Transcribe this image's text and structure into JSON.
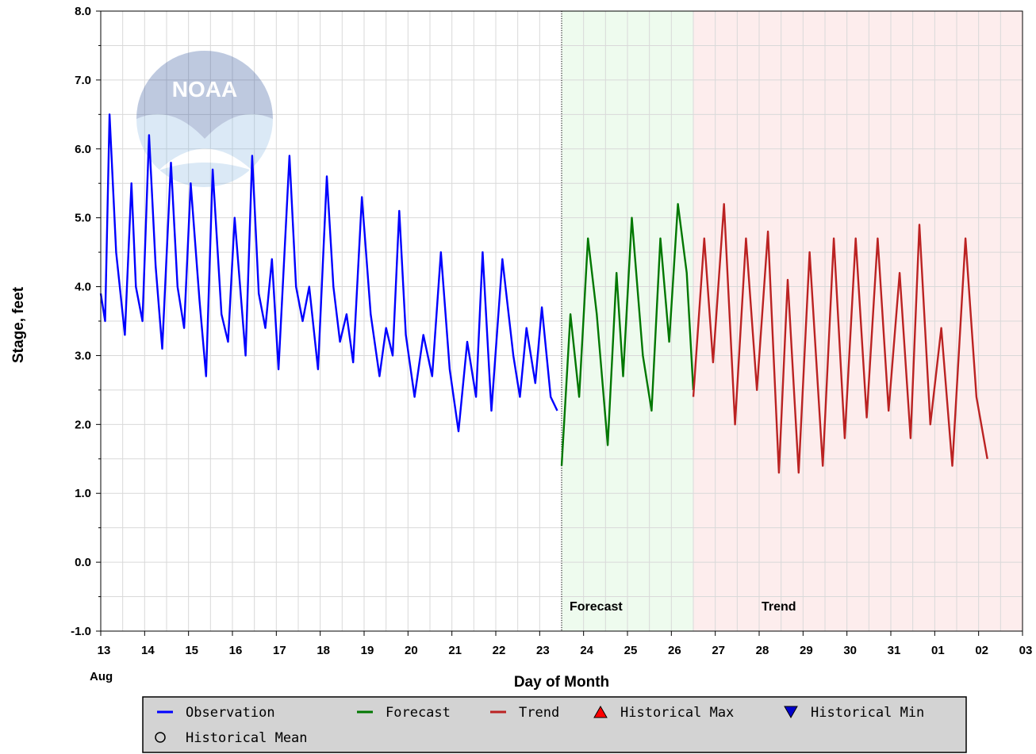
{
  "chart_data": {
    "type": "line",
    "title": "",
    "xlabel": "Day of Month",
    "ylabel": "Stage, feet",
    "ylim": [
      -1.0,
      8.0
    ],
    "xlim_days": [
      13,
      34
    ],
    "y_ticks": [
      "-1.0",
      "0.0",
      "1.0",
      "2.0",
      "3.0",
      "4.0",
      "5.0",
      "6.0",
      "7.0",
      "8.0"
    ],
    "x_ticks": [
      "13",
      "14",
      "15",
      "16",
      "17",
      "18",
      "19",
      "20",
      "21",
      "22",
      "23",
      "24",
      "25",
      "26",
      "27",
      "28",
      "29",
      "30",
      "31",
      "01",
      "02",
      "03"
    ],
    "x_month_label": "Aug",
    "grid": true,
    "regions": [
      {
        "name": "Forecast",
        "label": "Forecast",
        "start_day": 23.5,
        "end_day": 26.5,
        "color": "#eefbee"
      },
      {
        "name": "Trend",
        "label": "Trend",
        "start_day": 26.5,
        "end_day": 34,
        "color": "#fdeded"
      }
    ],
    "series": [
      {
        "name": "Observation",
        "color": "#0000ff",
        "x_day": [
          13.0,
          13.1,
          13.2,
          13.35,
          13.55,
          13.7,
          13.8,
          13.95,
          14.1,
          14.25,
          14.4,
          14.6,
          14.75,
          14.9,
          15.05,
          15.25,
          15.4,
          15.55,
          15.75,
          15.9,
          16.05,
          16.3,
          16.45,
          16.6,
          16.75,
          16.9,
          17.05,
          17.3,
          17.45,
          17.6,
          17.75,
          17.95,
          18.15,
          18.3,
          18.45,
          18.6,
          18.75,
          18.95,
          19.15,
          19.35,
          19.5,
          19.65,
          19.8,
          19.95,
          20.15,
          20.35,
          20.55,
          20.75,
          20.95,
          21.15,
          21.35,
          21.55,
          21.7,
          21.9,
          22.15,
          22.4,
          22.55,
          22.7,
          22.9,
          23.05,
          23.25,
          23.4
        ],
        "y": [
          3.9,
          3.5,
          6.5,
          4.5,
          3.3,
          5.5,
          4.0,
          3.5,
          6.2,
          4.3,
          3.1,
          5.8,
          4.0,
          3.4,
          5.5,
          3.8,
          2.7,
          5.7,
          3.6,
          3.2,
          5.0,
          3.0,
          5.9,
          3.9,
          3.4,
          4.4,
          2.8,
          5.9,
          4.0,
          3.5,
          4.0,
          2.8,
          5.6,
          4.0,
          3.2,
          3.6,
          2.9,
          5.3,
          3.6,
          2.7,
          3.4,
          3.0,
          5.1,
          3.3,
          2.4,
          3.3,
          2.7,
          4.5,
          2.8,
          1.9,
          3.2,
          2.4,
          4.5,
          2.2,
          4.4,
          3.0,
          2.4,
          3.4,
          2.6,
          3.7,
          2.4,
          2.2
        ]
      },
      {
        "name": "Forecast",
        "color": "#007700",
        "x_day": [
          23.5,
          23.7,
          23.9,
          24.1,
          24.3,
          24.55,
          24.75,
          24.9,
          25.1,
          25.35,
          25.55,
          25.75,
          25.95,
          26.15,
          26.35,
          26.5
        ],
        "y": [
          1.4,
          3.6,
          2.4,
          4.7,
          3.6,
          1.7,
          4.2,
          2.7,
          5.0,
          3.0,
          2.2,
          4.7,
          3.2,
          5.2,
          4.2,
          2.5
        ]
      },
      {
        "name": "Trend",
        "color": "#bb2222",
        "x_day": [
          26.5,
          26.75,
          26.95,
          27.2,
          27.45,
          27.7,
          27.95,
          28.2,
          28.45,
          28.65,
          28.9,
          29.15,
          29.45,
          29.7,
          29.95,
          30.2,
          30.45,
          30.7,
          30.95,
          31.2,
          31.45,
          31.65,
          31.9,
          32.15,
          32.4,
          32.7,
          32.95,
          33.2
        ],
        "y": [
          2.4,
          4.7,
          2.9,
          5.2,
          2.0,
          4.7,
          2.5,
          4.8,
          1.3,
          4.1,
          1.3,
          4.5,
          1.4,
          4.7,
          1.8,
          4.7,
          2.1,
          4.7,
          2.2,
          4.2,
          1.8,
          4.9,
          2.0,
          3.4,
          1.4,
          4.7,
          2.4,
          1.5
        ]
      }
    ],
    "legend": {
      "placement": "bottom",
      "items": [
        {
          "label": "Observation",
          "symbol": "line",
          "color": "#0000ff"
        },
        {
          "label": "Forecast",
          "symbol": "line",
          "color": "#007700"
        },
        {
          "label": "Trend",
          "symbol": "line",
          "color": "#bb2222"
        },
        {
          "label": "Historical Max",
          "symbol": "triangle-up",
          "color": "#ff0000"
        },
        {
          "label": "Historical Min",
          "symbol": "triangle-down",
          "color": "#0000cc"
        },
        {
          "label": "Historical Mean",
          "symbol": "circle",
          "color": "#000000"
        }
      ]
    },
    "watermark": "NOAA"
  }
}
